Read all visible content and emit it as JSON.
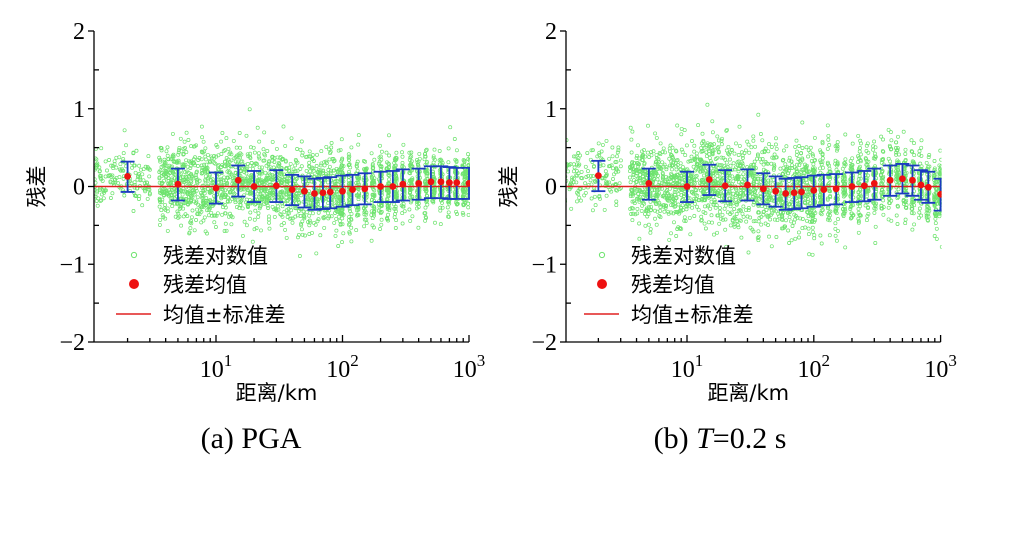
{
  "colors": {
    "scatter": "#6ee36e",
    "mean": "#ee1111",
    "errorbar": "#1a3bc0",
    "zero_line": "#e02020",
    "axis": "#000000"
  },
  "legend": {
    "items": [
      {
        "label": "残差对数值",
        "marker": "hollow-circle"
      },
      {
        "label": "残差均值",
        "marker": "filled-circle"
      },
      {
        "label": "均值±标准差",
        "marker": "line"
      }
    ],
    "position": "bottom-left"
  },
  "chart_data": [
    {
      "type": "scatter",
      "panel": "a",
      "caption": "(a) PGA",
      "caption_prefix": "(a) ",
      "caption_main": "PGA",
      "xlabel": "距离/km",
      "ylabel": "残差",
      "xscale": "log",
      "xlim": [
        1.08,
        1000
      ],
      "ylim": [
        -2,
        2
      ],
      "yticks": [
        -2,
        -1,
        0,
        1,
        2
      ],
      "ytick_labels": [
        "−2",
        "−1",
        "0",
        "1",
        "2"
      ],
      "xticks": [
        10,
        100,
        1000
      ],
      "xtick_labels": [
        {
          "base": "10",
          "exp": "1"
        },
        {
          "base": "10",
          "exp": "2"
        },
        {
          "base": "10",
          "exp": "3"
        }
      ],
      "grid": false,
      "reference_line_y": 0,
      "scatter_envelope": {
        "description": "dense cloud of residuals, roughly within ±0.6 to ±0.9 around 0",
        "x_range": [
          1.08,
          1000
        ],
        "y_approx_range": [
          -0.7,
          0.95
        ]
      },
      "series": [
        {
          "name": "残差均值",
          "x": [
            2,
            5,
            10,
            15,
            20,
            30,
            40,
            50,
            60,
            70,
            80,
            100,
            120,
            150,
            200,
            250,
            300,
            400,
            500,
            600,
            700,
            800,
            1000
          ],
          "mean": [
            0.13,
            0.03,
            -0.02,
            0.08,
            0.0,
            0.01,
            -0.04,
            -0.06,
            -0.09,
            -0.08,
            -0.07,
            -0.06,
            -0.04,
            -0.03,
            0.0,
            0.0,
            0.03,
            0.04,
            0.06,
            0.06,
            0.05,
            0.05,
            0.04
          ],
          "upper": [
            0.32,
            0.23,
            0.18,
            0.27,
            0.2,
            0.21,
            0.15,
            0.13,
            0.1,
            0.11,
            0.12,
            0.14,
            0.15,
            0.17,
            0.19,
            0.2,
            0.22,
            0.23,
            0.26,
            0.26,
            0.25,
            0.24,
            0.24
          ],
          "lower": [
            -0.07,
            -0.18,
            -0.22,
            -0.13,
            -0.2,
            -0.2,
            -0.24,
            -0.27,
            -0.3,
            -0.29,
            -0.28,
            -0.26,
            -0.24,
            -0.23,
            -0.2,
            -0.2,
            -0.18,
            -0.17,
            -0.15,
            -0.15,
            -0.16,
            -0.16,
            -0.16
          ]
        }
      ]
    },
    {
      "type": "scatter",
      "panel": "b",
      "caption": "(b) T=0.2 s",
      "caption_prefix": "(b) ",
      "caption_italic": "T",
      "caption_suffix": "=0.2 s",
      "xlabel": "距离/km",
      "ylabel": "残差",
      "xscale": "log",
      "xlim": [
        1.08,
        1000
      ],
      "ylim": [
        -2,
        2
      ],
      "yticks": [
        -2,
        -1,
        0,
        1,
        2
      ],
      "ytick_labels": [
        "−2",
        "−1",
        "0",
        "1",
        "2"
      ],
      "xticks": [
        10,
        100,
        1000
      ],
      "xtick_labels": [
        {
          "base": "10",
          "exp": "1"
        },
        {
          "base": "10",
          "exp": "2"
        },
        {
          "base": "10",
          "exp": "3"
        }
      ],
      "grid": false,
      "reference_line_y": 0,
      "scatter_envelope": {
        "description": "dense cloud of residuals, roughly within ±0.7 to ±1.0 around 0",
        "x_range": [
          1.08,
          1000
        ],
        "y_approx_range": [
          -0.75,
          1.0
        ]
      },
      "series": [
        {
          "name": "残差均值",
          "x": [
            2,
            5,
            10,
            15,
            20,
            30,
            40,
            50,
            60,
            70,
            80,
            100,
            120,
            150,
            200,
            250,
            300,
            400,
            500,
            600,
            700,
            800,
            1000
          ],
          "mean": [
            0.14,
            0.04,
            0.0,
            0.09,
            0.01,
            0.02,
            -0.03,
            -0.06,
            -0.09,
            -0.08,
            -0.07,
            -0.05,
            -0.04,
            -0.03,
            0.0,
            0.01,
            0.04,
            0.08,
            0.1,
            0.08,
            0.02,
            -0.01,
            -0.1
          ],
          "upper": [
            0.33,
            0.23,
            0.19,
            0.28,
            0.21,
            0.22,
            0.17,
            0.13,
            0.1,
            0.11,
            0.12,
            0.14,
            0.15,
            0.16,
            0.18,
            0.2,
            0.23,
            0.27,
            0.29,
            0.27,
            0.21,
            0.19,
            0.1
          ],
          "lower": [
            -0.06,
            -0.17,
            -0.2,
            -0.11,
            -0.19,
            -0.18,
            -0.23,
            -0.26,
            -0.3,
            -0.29,
            -0.28,
            -0.26,
            -0.24,
            -0.23,
            -0.2,
            -0.19,
            -0.17,
            -0.12,
            -0.09,
            -0.12,
            -0.17,
            -0.21,
            -0.31
          ]
        }
      ]
    }
  ]
}
